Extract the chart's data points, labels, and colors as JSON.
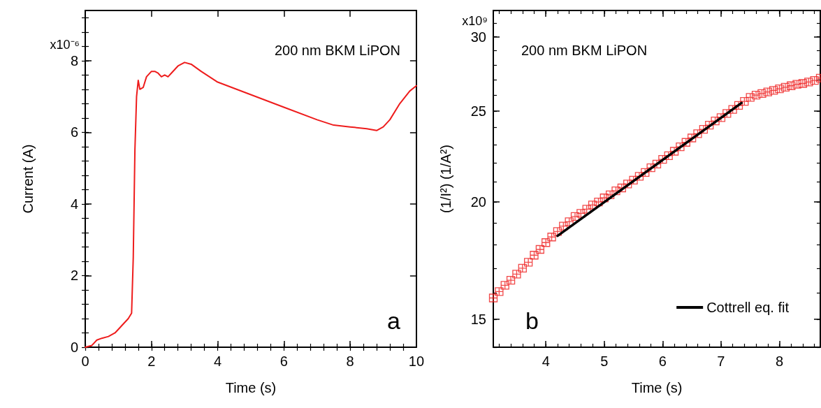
{
  "chart_data": [
    {
      "type": "line",
      "xlabel": "Time (s)",
      "ylabel": "Current (A)",
      "annotations": [
        "200 nm BKM LiPON",
        "a",
        "x10⁻⁶"
      ],
      "xlim": [
        0,
        10
      ],
      "xticks": [
        0,
        2,
        4,
        6,
        8,
        10
      ],
      "ylim": [
        0,
        9.4
      ],
      "yticks": [
        0,
        2,
        4,
        6,
        8
      ],
      "series": [
        {
          "color": "#ee1c1c",
          "x": [
            0,
            0.2,
            0.35,
            0.5,
            0.7,
            0.9,
            1.1,
            1.3,
            1.4,
            1.45,
            1.5,
            1.55,
            1.6,
            1.65,
            1.75,
            1.85,
            2.0,
            2.1,
            2.2,
            2.3,
            2.4,
            2.5,
            2.6,
            2.8,
            3.0,
            3.2,
            3.5,
            4,
            5,
            6,
            7,
            7.5,
            8,
            8.5,
            8.8,
            9.0,
            9.2,
            9.5,
            9.8,
            10
          ],
          "values": [
            0,
            0.05,
            0.2,
            0.25,
            0.3,
            0.4,
            0.6,
            0.8,
            0.95,
            2.5,
            5.5,
            7.0,
            7.45,
            7.2,
            7.25,
            7.55,
            7.7,
            7.7,
            7.65,
            7.55,
            7.6,
            7.55,
            7.65,
            7.85,
            7.95,
            7.9,
            7.7,
            7.4,
            7.05,
            6.7,
            6.35,
            6.2,
            6.15,
            6.1,
            6.05,
            6.15,
            6.35,
            6.8,
            7.15,
            7.3
          ]
        }
      ]
    },
    {
      "type": "scatter",
      "xlabel": "Time (s)",
      "ylabel": "(1/I²) (1/A²)",
      "annotations": [
        "200 nm BKM LiPON",
        "b",
        "x10⁹"
      ],
      "xlim": [
        3.1,
        8.7
      ],
      "xticks": [
        4,
        5,
        6,
        7,
        8
      ],
      "ylim": [
        14,
        32
      ],
      "log": "y",
      "yticks": [
        15,
        20,
        25,
        30
      ],
      "legend": "bottom right",
      "series": [
        {
          "marker": "cross",
          "color": "#ee1c1c",
          "x": [
            3.1,
            3.2,
            3.3,
            3.4,
            3.5,
            3.6,
            3.7,
            3.8,
            3.9,
            4.0,
            4.1,
            4.2,
            4.3,
            4.4,
            4.5,
            4.6,
            4.7,
            4.8,
            4.9,
            5.0,
            5.1,
            5.2,
            5.3,
            5.4,
            5.5,
            5.6,
            5.7,
            5.8,
            5.9,
            6.0,
            6.1,
            6.2,
            6.3,
            6.4,
            6.5,
            6.6,
            6.7,
            6.8,
            6.9,
            7.0,
            7.1,
            7.2,
            7.3,
            7.4,
            7.5,
            7.6,
            7.7,
            7.8,
            7.9,
            8.0,
            8.1,
            8.2,
            8.3,
            8.4,
            8.5,
            8.6,
            8.7
          ],
          "values": [
            15.8,
            16.05,
            16.3,
            16.5,
            16.75,
            17.0,
            17.25,
            17.55,
            17.8,
            18.1,
            18.35,
            18.6,
            18.85,
            19.05,
            19.3,
            19.45,
            19.65,
            19.85,
            20.0,
            20.2,
            20.35,
            20.55,
            20.7,
            20.9,
            21.1,
            21.3,
            21.5,
            21.75,
            21.95,
            22.2,
            22.4,
            22.65,
            22.9,
            23.15,
            23.4,
            23.65,
            23.9,
            24.15,
            24.4,
            24.6,
            24.85,
            25.1,
            25.35,
            25.6,
            25.85,
            26.0,
            26.1,
            26.2,
            26.3,
            26.4,
            26.5,
            26.6,
            26.7,
            26.75,
            26.85,
            26.95,
            27.1
          ]
        },
        {
          "type": "line",
          "name": "Cottrell eq. fit",
          "color": "#000000",
          "x": [
            4.2,
            7.35
          ],
          "values": [
            18.4,
            25.5
          ]
        }
      ]
    }
  ]
}
